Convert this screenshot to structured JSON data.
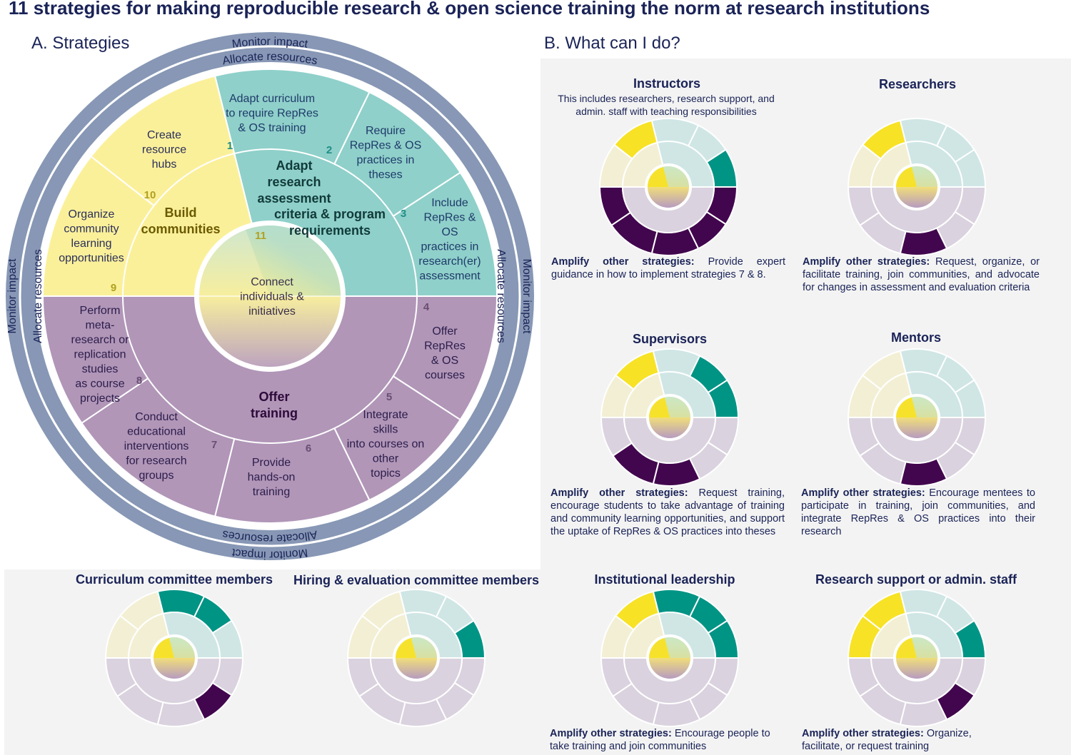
{
  "title": "11 strategies for making reproducible research & open science training the norm at research institutions",
  "sectionA": "A. Strategies",
  "sectionB": "B. What can I do?",
  "ring_labels": {
    "monitor": "Monitor impact",
    "allocate": "Allocate resources"
  },
  "groups": {
    "adapt": [
      "Adapt",
      "research",
      "assessment",
      "criteria & program",
      "requirements"
    ],
    "build": [
      "Build",
      "communities"
    ],
    "offer": [
      "Offer",
      "training"
    ],
    "connect": [
      "Connect",
      "individuals &",
      "initiatives"
    ]
  },
  "strategies": [
    {
      "n": "1",
      "lines": [
        "Adapt curriculum",
        "to require RepRes",
        "& OS training"
      ]
    },
    {
      "n": "2",
      "lines": [
        "Require",
        "RepRes & OS",
        "practices in",
        "theses"
      ]
    },
    {
      "n": "3",
      "lines": [
        "Include",
        "RepRes &",
        "OS",
        "practices in",
        "research(er)",
        "assessment"
      ]
    },
    {
      "n": "4",
      "lines": [
        "Offer",
        "RepRes",
        "& OS",
        "courses"
      ]
    },
    {
      "n": "5",
      "lines": [
        "Integrate",
        "skills",
        "into courses on",
        "other",
        "topics"
      ]
    },
    {
      "n": "6",
      "lines": [
        "Provide",
        "hands-on",
        "training"
      ]
    },
    {
      "n": "7",
      "lines": [
        "Conduct",
        "educational",
        "interventions",
        "for research",
        "groups"
      ]
    },
    {
      "n": "8",
      "lines": [
        "Perform",
        "meta-",
        "research or",
        "replication",
        "studies",
        "as course",
        "projects"
      ]
    },
    {
      "n": "9",
      "lines": [
        "Organize",
        "community",
        "learning",
        "opportunities"
      ]
    },
    {
      "n": "10",
      "lines": [
        "Create",
        "resource",
        "hubs"
      ]
    },
    {
      "n": "11",
      "lines": []
    }
  ],
  "colors": {
    "teal": "#8fd0ca",
    "teal_dark": "#009485",
    "teal_light": "#cfe6e5",
    "yellow": "#fbf09a",
    "yellow_dark": "#f7e226",
    "yellow_light": "#f3efd4",
    "purple": "#b196b8",
    "purple_dark": "#42064e",
    "purple_light": "#dad2df",
    "ring": "#8797b5",
    "navy": "#1a2357"
  },
  "roles": [
    {
      "key": "instructors",
      "title": "Instructors",
      "subtitle": "This includes researchers, research support, and admin. staff with teaching responsibilities",
      "amp_label": "Amplify other strategies:",
      "amp_text": "Provide expert guidance in how to implement strategies 7 & 8.",
      "highlight": [
        3,
        4,
        5,
        6,
        7,
        8,
        10
      ],
      "core_full": true
    },
    {
      "key": "researchers",
      "title": "Researchers",
      "subtitle": "",
      "amp_label": "Amplify other strategies:",
      "amp_text": "Request, organize, or facilitate training, join communities, and advocate for changes in assessment and evaluation criteria",
      "highlight": [
        6,
        10
      ],
      "core_full": true
    },
    {
      "key": "supervisors",
      "title": "Supervisors",
      "subtitle": "",
      "amp_label": "Amplify other strategies:",
      "amp_text": "Request training, encourage students to take advantage of training and community learning opportunities, and support the uptake of RepRes & OS practices into theses",
      "highlight": [
        2,
        3,
        6,
        7,
        10
      ],
      "core_full": false
    },
    {
      "key": "mentors",
      "title": "Mentors",
      "subtitle": "",
      "amp_label": "Amplify other strategies:",
      "amp_text": "Encourage mentees to participate in training, join communities, and integrate RepRes & OS practices into their research",
      "highlight": [
        6
      ],
      "core_full": false
    },
    {
      "key": "curriculum",
      "title": "Curriculum committee members",
      "subtitle": "",
      "amp_label": "",
      "amp_text": "",
      "highlight": [
        1,
        2,
        5
      ],
      "core_full": false
    },
    {
      "key": "hiring",
      "title": "Hiring & evaluation committee members",
      "subtitle": "",
      "amp_label": "",
      "amp_text": "",
      "highlight": [
        3
      ],
      "core_full": false
    },
    {
      "key": "leadership",
      "title": "Institutional leadership",
      "subtitle": "",
      "amp_label": "Amplify other strategies:",
      "amp_text": "Encourage people to take training and join communities",
      "highlight": [
        1,
        2,
        3,
        10
      ],
      "core_full": false
    },
    {
      "key": "support",
      "title": "Research support or admin. staff",
      "subtitle": "",
      "amp_label": "Amplify other strategies:",
      "amp_text": "Organize, facilitate, or request training",
      "highlight": [
        3,
        5,
        9,
        10
      ],
      "core_full": false
    }
  ]
}
